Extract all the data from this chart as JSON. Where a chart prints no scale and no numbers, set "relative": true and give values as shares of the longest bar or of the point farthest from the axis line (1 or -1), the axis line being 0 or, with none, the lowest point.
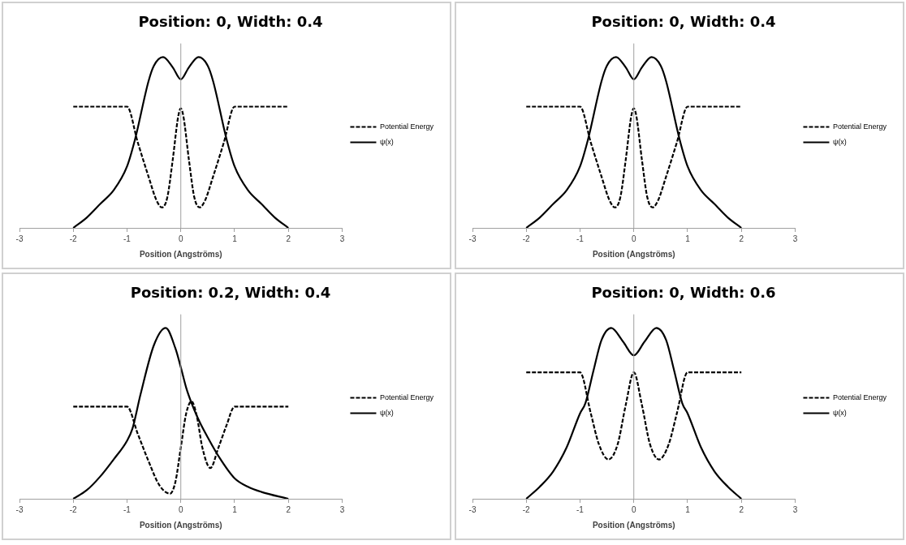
{
  "chart_data": [
    {
      "type": "line",
      "title": "Position: 0, Width: 0.4",
      "xlabel": "Position (Angströms)",
      "relative": true,
      "xlim": [
        -3,
        3
      ],
      "xticks": [
        -3,
        -2,
        -1,
        0,
        1,
        2,
        3
      ],
      "legend": "right",
      "marker": "none",
      "series": [
        {
          "name": "Potential Energy",
          "color": "#000000",
          "line_style": "dashed",
          "x": [
            -2,
            -1,
            -0.8,
            -0.6,
            -0.45,
            -0.35,
            -0.25,
            -0.15,
            -0.05,
            0,
            0.05,
            0.15,
            0.25,
            0.35,
            0.45,
            0.6,
            0.8,
            1,
            2
          ],
          "values": [
            0.71,
            0.71,
            0.5,
            0.3,
            0.16,
            0.12,
            0.18,
            0.4,
            0.65,
            0.7,
            0.65,
            0.4,
            0.18,
            0.12,
            0.16,
            0.3,
            0.5,
            0.71,
            0.71
          ]
        },
        {
          "name": "ψ(x)",
          "color": "#000000",
          "line_style": "solid",
          "x": [
            -2,
            -1.75,
            -1.5,
            -1.25,
            -1,
            -0.85,
            -0.6,
            -0.5,
            -0.33,
            -0.15,
            0,
            0.15,
            0.33,
            0.5,
            0.6,
            0.85,
            1,
            1.25,
            1.5,
            1.75,
            2
          ],
          "values": [
            0,
            0.06,
            0.14,
            0.22,
            0.36,
            0.52,
            0.86,
            0.95,
            1,
            0.94,
            0.87,
            0.94,
            1,
            0.95,
            0.86,
            0.52,
            0.36,
            0.22,
            0.14,
            0.06,
            0
          ]
        }
      ]
    },
    {
      "type": "line",
      "title": "Position: 0, Width: 0.4",
      "xlabel": "Position (Angströms)",
      "relative": true,
      "xlim": [
        -3,
        3
      ],
      "xticks": [
        -3,
        -2,
        -1,
        0,
        1,
        2,
        3
      ],
      "legend": "right",
      "marker": "none",
      "series": [
        {
          "name": "Potential Energy",
          "color": "#000000",
          "line_style": "dashed",
          "x": [
            -2,
            -1,
            -0.8,
            -0.6,
            -0.45,
            -0.35,
            -0.25,
            -0.15,
            -0.05,
            0,
            0.05,
            0.15,
            0.25,
            0.35,
            0.45,
            0.6,
            0.8,
            1,
            2
          ],
          "values": [
            0.71,
            0.71,
            0.5,
            0.3,
            0.16,
            0.12,
            0.18,
            0.4,
            0.65,
            0.7,
            0.65,
            0.4,
            0.18,
            0.12,
            0.16,
            0.3,
            0.5,
            0.71,
            0.71
          ]
        },
        {
          "name": "ψ(x)",
          "color": "#000000",
          "line_style": "solid",
          "x": [
            -2,
            -1.75,
            -1.5,
            -1.25,
            -1,
            -0.85,
            -0.6,
            -0.5,
            -0.33,
            -0.15,
            0,
            0.15,
            0.33,
            0.5,
            0.6,
            0.85,
            1,
            1.25,
            1.5,
            1.75,
            2
          ],
          "values": [
            0,
            0.06,
            0.14,
            0.22,
            0.36,
            0.52,
            0.86,
            0.95,
            1,
            0.94,
            0.87,
            0.94,
            1,
            0.95,
            0.86,
            0.52,
            0.36,
            0.22,
            0.14,
            0.06,
            0
          ]
        }
      ]
    },
    {
      "type": "line",
      "title": "Position: 0.2, Width: 0.4",
      "xlabel": "Position (Angströms)",
      "relative": true,
      "xlim": [
        -3,
        3
      ],
      "xticks": [
        -3,
        -2,
        -1,
        0,
        1,
        2,
        3
      ],
      "legend": "right",
      "marker": "none",
      "series": [
        {
          "name": "Potential Energy",
          "color": "#000000",
          "line_style": "dashed",
          "x": [
            -2,
            -1,
            -0.8,
            -0.6,
            -0.4,
            -0.2,
            -0.1,
            0,
            0.1,
            0.2,
            0.3,
            0.4,
            0.55,
            0.7,
            0.85,
            1,
            2
          ],
          "values": [
            0.54,
            0.54,
            0.38,
            0.22,
            0.08,
            0.03,
            0.1,
            0.3,
            0.5,
            0.57,
            0.48,
            0.3,
            0.18,
            0.3,
            0.43,
            0.54,
            0.54
          ]
        },
        {
          "name": "ψ(x)",
          "color": "#000000",
          "line_style": "solid",
          "x": [
            -2,
            -1.75,
            -1.5,
            -1.25,
            -1,
            -0.9,
            -0.75,
            -0.5,
            -0.28,
            -0.1,
            0,
            0.1,
            0.2,
            0.35,
            0.5,
            0.7,
            1,
            1.25,
            1.5,
            2
          ],
          "values": [
            0,
            0.05,
            0.13,
            0.23,
            0.34,
            0.41,
            0.61,
            0.9,
            1,
            0.88,
            0.77,
            0.65,
            0.56,
            0.45,
            0.36,
            0.25,
            0.12,
            0.07,
            0.04,
            0
          ]
        }
      ]
    },
    {
      "type": "line",
      "title": "Position: 0, Width: 0.6",
      "xlabel": "Position (Angströms)",
      "relative": true,
      "xlim": [
        -3,
        3
      ],
      "xticks": [
        -3,
        -2,
        -1,
        0,
        1,
        2,
        3
      ],
      "legend": "right",
      "marker": "none",
      "series": [
        {
          "name": "Potential Energy",
          "color": "#000000",
          "line_style": "dashed",
          "x": [
            -2,
            -1,
            -0.8,
            -0.65,
            -0.47,
            -0.3,
            -0.15,
            0,
            0.15,
            0.3,
            0.47,
            0.65,
            0.8,
            1,
            2
          ],
          "values": [
            0.74,
            0.74,
            0.5,
            0.32,
            0.23,
            0.32,
            0.55,
            0.74,
            0.55,
            0.32,
            0.23,
            0.32,
            0.5,
            0.74,
            0.74
          ]
        },
        {
          "name": "ψ(x)",
          "color": "#000000",
          "line_style": "solid",
          "x": [
            -2,
            -1.75,
            -1.5,
            -1.25,
            -1,
            -0.9,
            -0.75,
            -0.6,
            -0.42,
            -0.2,
            0,
            0.2,
            0.42,
            0.6,
            0.75,
            0.9,
            1,
            1.25,
            1.5,
            1.75,
            2
          ],
          "values": [
            0,
            0.07,
            0.16,
            0.3,
            0.5,
            0.56,
            0.75,
            0.93,
            1,
            0.92,
            0.84,
            0.92,
            1,
            0.93,
            0.75,
            0.56,
            0.5,
            0.3,
            0.16,
            0.07,
            0
          ]
        }
      ]
    }
  ]
}
